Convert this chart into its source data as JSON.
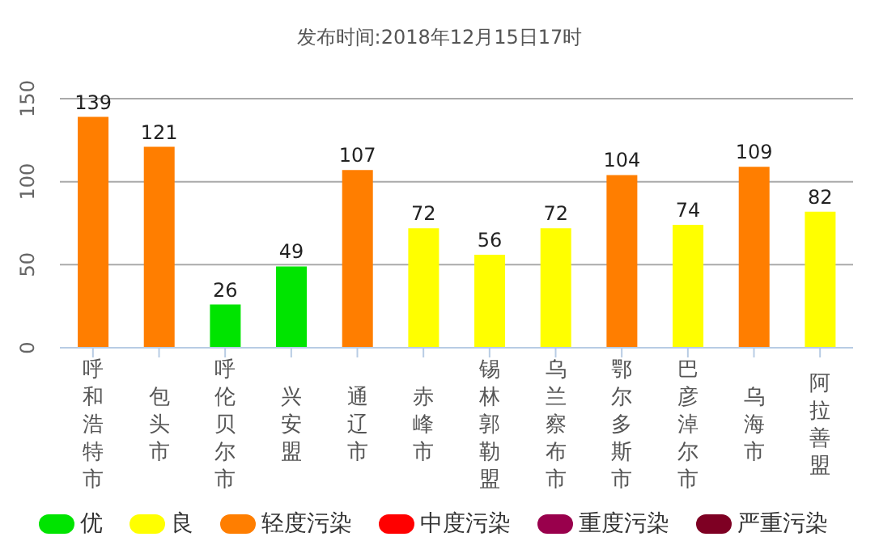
{
  "chart_data": {
    "type": "bar",
    "title": "发布时间:2018年12月15日17时",
    "categories": [
      "呼和浩特市",
      "包头市",
      "呼伦贝尔市",
      "兴安盟",
      "通辽市",
      "赤峰市",
      "锡林郭勒盟",
      "乌兰察布市",
      "鄂尔多斯市",
      "巴彦淖尔市",
      "乌海市",
      "阿拉善盟"
    ],
    "series": [
      {
        "name": "优",
        "color": "#00e400",
        "values": [
          null,
          null,
          26,
          49,
          null,
          null,
          null,
          null,
          null,
          null,
          null,
          null
        ]
      },
      {
        "name": "良",
        "color": "#ffff00",
        "values": [
          null,
          null,
          null,
          null,
          null,
          72,
          56,
          72,
          null,
          74,
          null,
          82
        ]
      },
      {
        "name": "轻度污染",
        "color": "#ff7e00",
        "values": [
          139,
          121,
          null,
          null,
          107,
          null,
          null,
          null,
          104,
          null,
          109,
          null
        ]
      },
      {
        "name": "中度污染",
        "color": "#ff0000",
        "values": [
          null,
          null,
          null,
          null,
          null,
          null,
          null,
          null,
          null,
          null,
          null,
          null
        ]
      },
      {
        "name": "重度污染",
        "color": "#99004c",
        "values": [
          null,
          null,
          null,
          null,
          null,
          null,
          null,
          null,
          null,
          null,
          null,
          null
        ]
      },
      {
        "name": "严重污染",
        "color": "#7e0023",
        "values": [
          null,
          null,
          null,
          null,
          null,
          null,
          null,
          null,
          null,
          null,
          null,
          null
        ]
      }
    ],
    "stacked": true,
    "data_labels": true,
    "ylim": [
      0,
      150
    ],
    "yticks": [
      0,
      50,
      100,
      150
    ],
    "grid": "y",
    "legend": "bottom"
  }
}
